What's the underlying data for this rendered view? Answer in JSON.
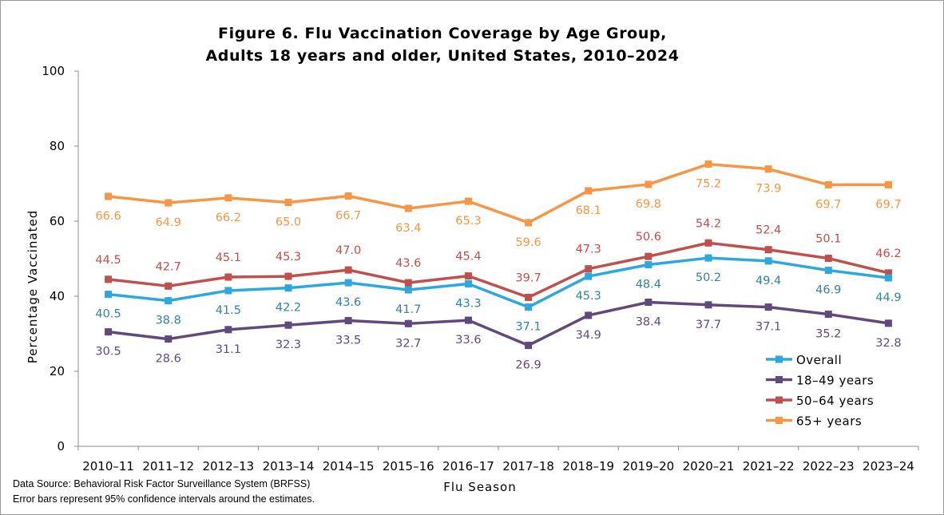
{
  "chart_data": {
    "type": "line",
    "title_lines": [
      "Figure 6. Flu Vaccination Coverage by Age Group,",
      "Adults 18 years and older, United States, 2010–2024"
    ],
    "xlabel": "Flu Season",
    "ylabel": "Percentage Vaccinated",
    "ylim": [
      0,
      100
    ],
    "yticks": [
      0,
      20,
      40,
      60,
      80,
      100
    ],
    "grid": false,
    "legend_position": "bottom-right",
    "categories": [
      "2010–11",
      "2011–12",
      "2012–13",
      "2013–14",
      "2014–15",
      "2015–16",
      "2016–17",
      "2017–18",
      "2018–19",
      "2019–20",
      "2020–21",
      "2021–22",
      "2022–23",
      "2023–24"
    ],
    "series": [
      {
        "name": "65+ years",
        "color": "#f79646",
        "label_color": "#f79646",
        "values": [
          66.6,
          64.9,
          66.2,
          65.0,
          66.7,
          63.4,
          65.3,
          59.6,
          68.1,
          69.8,
          75.2,
          73.9,
          69.7,
          69.7
        ],
        "labels": [
          "66.6",
          "64.9",
          "66.2",
          "65.0",
          "66.7",
          "63.4",
          "65.3",
          "59.6",
          "68.1",
          "69.8",
          "75.2",
          "73.9",
          "69.7",
          "69.7"
        ],
        "label_side": "below"
      },
      {
        "name": "50–64 years",
        "color": "#c0504d",
        "label_color": "#c0504d",
        "values": [
          44.5,
          42.7,
          45.1,
          45.3,
          47.0,
          43.6,
          45.4,
          39.7,
          47.3,
          50.6,
          54.2,
          52.4,
          50.1,
          46.2
        ],
        "labels": [
          "44.5",
          "42.7",
          "45.1",
          "45.3",
          "47.0",
          "43.6",
          "45.4",
          "39.7",
          "47.3",
          "50.6",
          "54.2",
          "52.4",
          "50.1",
          "46.2"
        ],
        "label_side": "above"
      },
      {
        "name": "Overall",
        "color": "#2ea8dc",
        "label_color": "#31849b",
        "values": [
          40.5,
          38.8,
          41.5,
          42.2,
          43.6,
          41.7,
          43.3,
          37.1,
          45.3,
          48.4,
          50.2,
          49.4,
          46.9,
          44.9
        ],
        "labels": [
          "40.5",
          "38.8",
          "41.5",
          "42.2",
          "43.6",
          "41.7",
          "43.3",
          "37.1",
          "45.3",
          "48.4",
          "50.2",
          "49.4",
          "46.9",
          "44.9"
        ],
        "label_side": "below"
      },
      {
        "name": "18–49 years",
        "color": "#604a7b",
        "label_color": "#604a7b",
        "values": [
          30.5,
          28.6,
          31.1,
          32.3,
          33.5,
          32.7,
          33.6,
          26.9,
          34.9,
          38.4,
          37.7,
          37.1,
          35.2,
          32.8
        ],
        "labels": [
          "30.5",
          "28.6",
          "31.1",
          "32.3",
          "33.5",
          "32.7",
          "33.6",
          "26.9",
          "34.9",
          "38.4",
          "37.7",
          "37.1",
          "35.2",
          "32.8"
        ],
        "label_side": "below"
      }
    ],
    "legend_order": [
      "Overall",
      "18–49 years",
      "50–64 years",
      "65+ years"
    ]
  },
  "footnotes": {
    "source": "Data Source: Behavioral Risk Factor Surveillance System (BRFSS)",
    "error_bars": "Error bars represent 95% confidence  intervals  around  the  estimates."
  }
}
